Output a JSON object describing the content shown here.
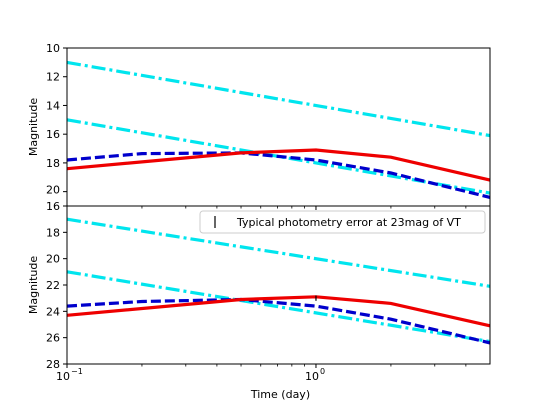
{
  "chart_data": [
    {
      "type": "line",
      "ylabel": "Magnitude",
      "xlabel": "",
      "xscale": "log",
      "xlim": [
        0.1,
        5
      ],
      "ylim": [
        10,
        21
      ],
      "y_inverted": true,
      "yticks": [
        10,
        12,
        14,
        16,
        18,
        20
      ],
      "yticklabels": [
        "10",
        "12",
        "14",
        "16",
        "18",
        "20"
      ],
      "grid": false,
      "series": [
        {
          "color": "#00e5ee",
          "style": "dashdot",
          "x": [
            0.1,
            5
          ],
          "y": [
            11.0,
            16.1
          ]
        },
        {
          "color": "#00e5ee",
          "style": "dashdot",
          "x": [
            0.1,
            5
          ],
          "y": [
            15.0,
            20.1
          ]
        },
        {
          "color": "#0000cc",
          "style": "dashed",
          "x": [
            0.1,
            0.2,
            0.5,
            1,
            2,
            5
          ],
          "y": [
            17.8,
            17.35,
            17.3,
            17.8,
            18.7,
            20.4
          ]
        },
        {
          "color": "#ee0000",
          "style": "solid",
          "x": [
            0.1,
            0.5,
            1,
            2,
            5
          ],
          "y": [
            18.4,
            17.3,
            17.1,
            17.6,
            19.2
          ]
        }
      ]
    },
    {
      "type": "line",
      "ylabel": "Magnitude",
      "xlabel": "Time (day)",
      "xscale": "log",
      "xlim": [
        0.1,
        5
      ],
      "ylim": [
        16,
        28
      ],
      "y_inverted": true,
      "yticks": [
        16,
        18,
        20,
        22,
        24,
        26,
        28
      ],
      "yticklabels": [
        "16",
        "18",
        "20",
        "22",
        "24",
        "26",
        "28"
      ],
      "xticks": [
        0.1,
        1
      ],
      "xticklabels_base": [
        "10",
        "10"
      ],
      "xticklabels_exp": [
        "−1",
        "0"
      ],
      "grid": false,
      "legend": {
        "location": "top-right",
        "label": "Typical photometry error at 23mag of VT"
      },
      "errorbar": {
        "x": 1,
        "y": 23.0,
        "yerr": 0.2
      },
      "series": [
        {
          "color": "#00e5ee",
          "style": "dashdot",
          "x": [
            0.1,
            5
          ],
          "y": [
            17.0,
            22.1
          ]
        },
        {
          "color": "#00e5ee",
          "style": "dashdot",
          "x": [
            0.1,
            5
          ],
          "y": [
            21.0,
            26.3
          ]
        },
        {
          "color": "#0000cc",
          "style": "dashed",
          "x": [
            0.1,
            0.2,
            0.5,
            1,
            2,
            5
          ],
          "y": [
            23.6,
            23.25,
            23.1,
            23.6,
            24.6,
            26.4
          ]
        },
        {
          "color": "#ee0000",
          "style": "solid",
          "x": [
            0.1,
            0.5,
            1,
            2,
            5
          ],
          "y": [
            24.3,
            23.1,
            22.9,
            23.4,
            25.1
          ]
        }
      ]
    }
  ]
}
